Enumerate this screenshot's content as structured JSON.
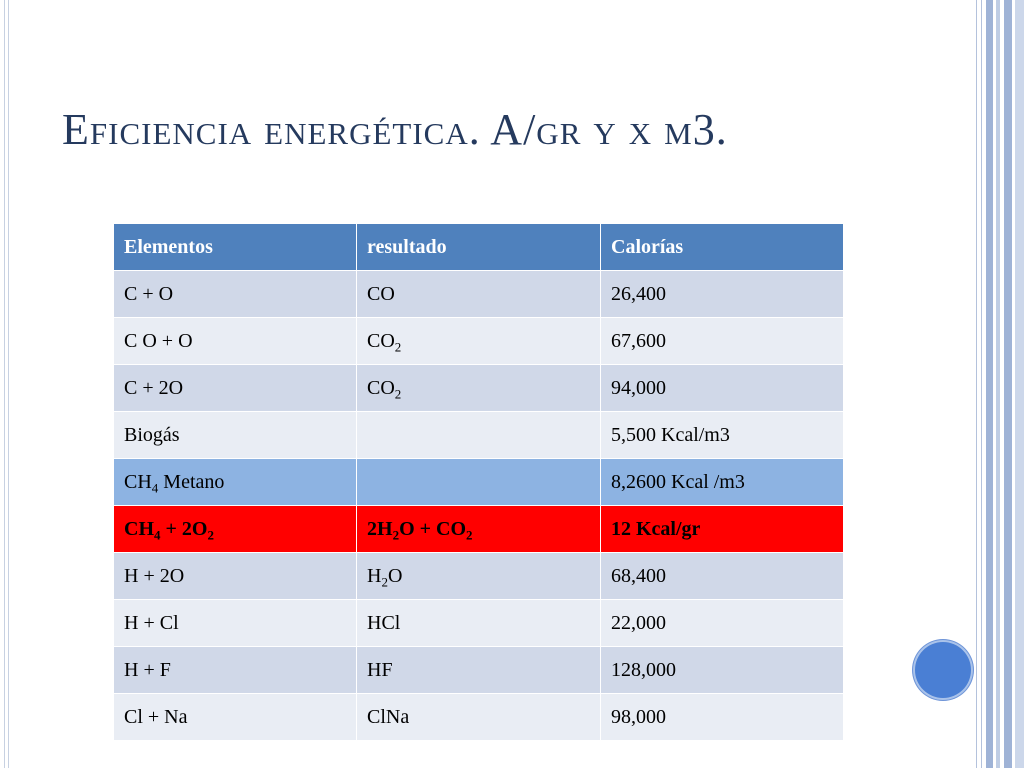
{
  "slide": {
    "title": "Eficiencia energética. A/gr y x m3."
  },
  "table": {
    "headers": [
      "Elementos",
      "resultado",
      "Calorías"
    ],
    "rows": [
      {
        "elem": [
          {
            "t": "C + O"
          }
        ],
        "res": [
          {
            "t": "CO"
          }
        ],
        "cal": "26,400"
      },
      {
        "elem": [
          {
            "t": "C O + O"
          }
        ],
        "res": [
          {
            "t": "CO"
          },
          {
            "t": "2",
            "sub": true
          }
        ],
        "cal": "67,600"
      },
      {
        "elem": [
          {
            "t": "C + 2O"
          }
        ],
        "res": [
          {
            "t": "CO"
          },
          {
            "t": "2",
            "sub": true
          }
        ],
        "cal": "94,000"
      },
      {
        "elem": [
          {
            "t": "Biogás"
          }
        ],
        "res": [],
        "cal": "5,500 Kcal/m3"
      },
      {
        "elem": [
          {
            "t": "CH"
          },
          {
            "t": "4",
            "sub": true
          },
          {
            "t": "  Metano"
          }
        ],
        "res": [],
        "cal": "8,2600 Kcal /m3",
        "style": "blue"
      },
      {
        "elem": [
          {
            "t": "CH"
          },
          {
            "t": "4",
            "sub": true
          },
          {
            "t": " + 2O"
          },
          {
            "t": "2",
            "sub": true
          }
        ],
        "res": [
          {
            "t": "2H"
          },
          {
            "t": "2",
            "sub": true
          },
          {
            "t": "O + CO"
          },
          {
            "t": "2",
            "sub": true
          }
        ],
        "cal": "12 Kcal/gr",
        "style": "red"
      },
      {
        "elem": [
          {
            "t": "H + 2O"
          }
        ],
        "res": [
          {
            "t": "H"
          },
          {
            "t": "2",
            "sub": true
          },
          {
            "t": "O"
          }
        ],
        "cal": "68,400"
      },
      {
        "elem": [
          {
            "t": "H + Cl"
          }
        ],
        "res": [
          {
            "t": "HCl"
          }
        ],
        "cal": "22,000"
      },
      {
        "elem": [
          {
            "t": "H + F"
          }
        ],
        "res": [
          {
            "t": "HF"
          }
        ],
        "cal": "128,000"
      },
      {
        "elem": [
          {
            "t": "Cl + Na"
          }
        ],
        "res": [
          {
            "t": "ClNa"
          }
        ],
        "cal": "98,000"
      }
    ]
  },
  "colors": {
    "header": "#4f81bd",
    "row_odd": "#d0d8e8",
    "row_even": "#e9edf4",
    "row_highlight_blue": "#8db3e2",
    "row_highlight_red": "#ff0000",
    "title_text": "#253a5e"
  }
}
